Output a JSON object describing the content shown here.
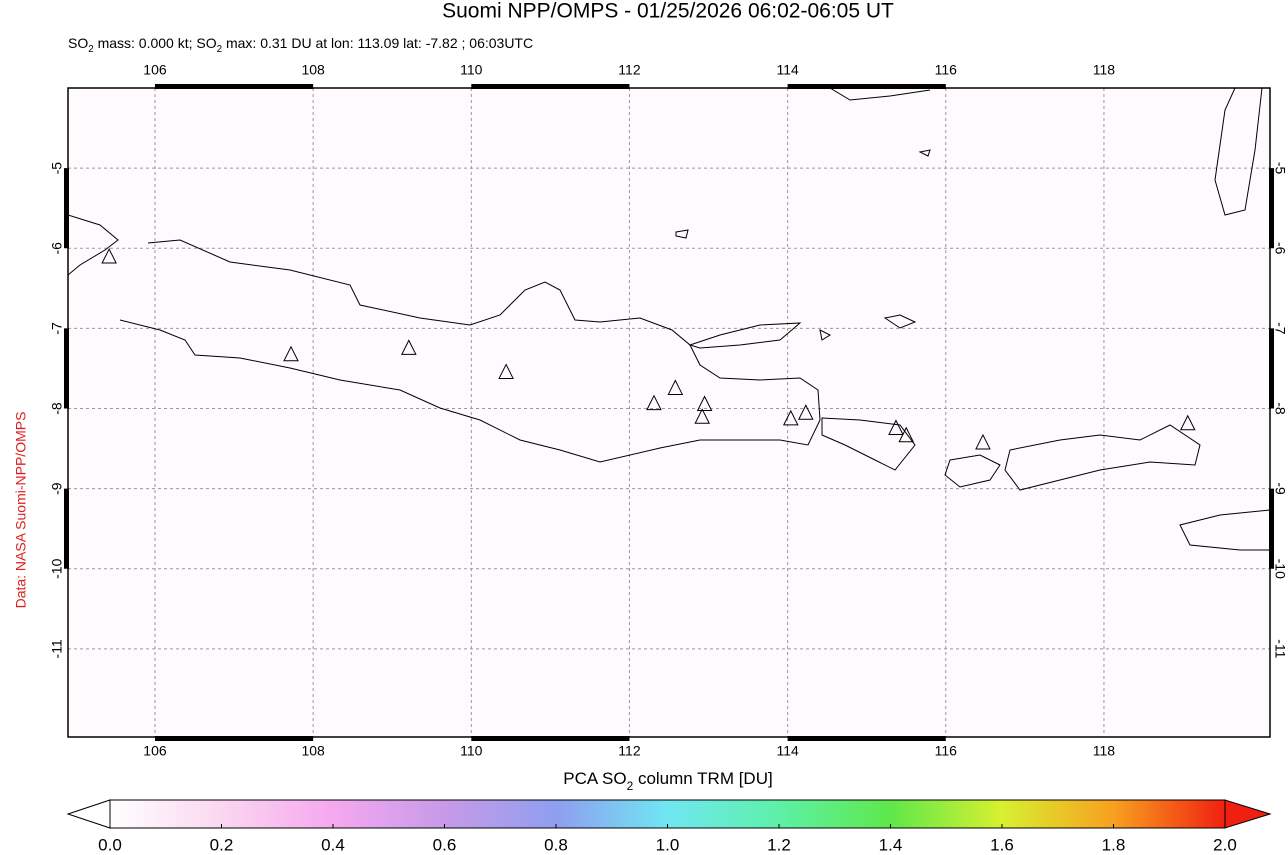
{
  "title": "Suomi NPP/OMPS - 01/25/2026 06:02-06:05 UT",
  "subtitle": [
    "SO",
    "2",
    " mass: 0.000 kt; SO",
    "2",
    " max: 0.31 DU at lon: 113.09 lat: -7.82 ; 06:03UTC"
  ],
  "credit": "Data: NASA Suomi-NPP/OMPS",
  "map": {
    "xlim": [
      104.9,
      120.1
    ],
    "ylim": [
      -4.0,
      -12.1
    ],
    "xticks": [
      106,
      108,
      110,
      112,
      114,
      116,
      118
    ],
    "yticks": [
      -5,
      -6,
      -7,
      -8,
      -9,
      -10,
      -11
    ],
    "grid": true,
    "volcanoes": {
      "lon": [
        105.42,
        107.72,
        109.21,
        110.44,
        112.31,
        112.58,
        112.95,
        112.92,
        114.04,
        114.23,
        115.37,
        115.5,
        116.47,
        119.06
      ],
      "lat": [
        -6.11,
        -7.33,
        -7.25,
        -7.55,
        -7.94,
        -7.75,
        -7.95,
        -8.11,
        -8.13,
        -8.06,
        -8.25,
        -8.34,
        -8.43,
        -8.19
      ]
    }
  },
  "colorbar": {
    "label": [
      "PCA SO",
      "2",
      " column TRM [DU]"
    ],
    "lim": [
      0,
      2
    ],
    "ticks": [
      {
        "value": 0,
        "label": "0.0"
      },
      0.2,
      0.4,
      0.6,
      0.8,
      {
        "value": 1,
        "label": "1.0"
      },
      1.2,
      1.4,
      1.6,
      1.8,
      {
        "value": 2,
        "label": "2.0"
      }
    ]
  }
}
